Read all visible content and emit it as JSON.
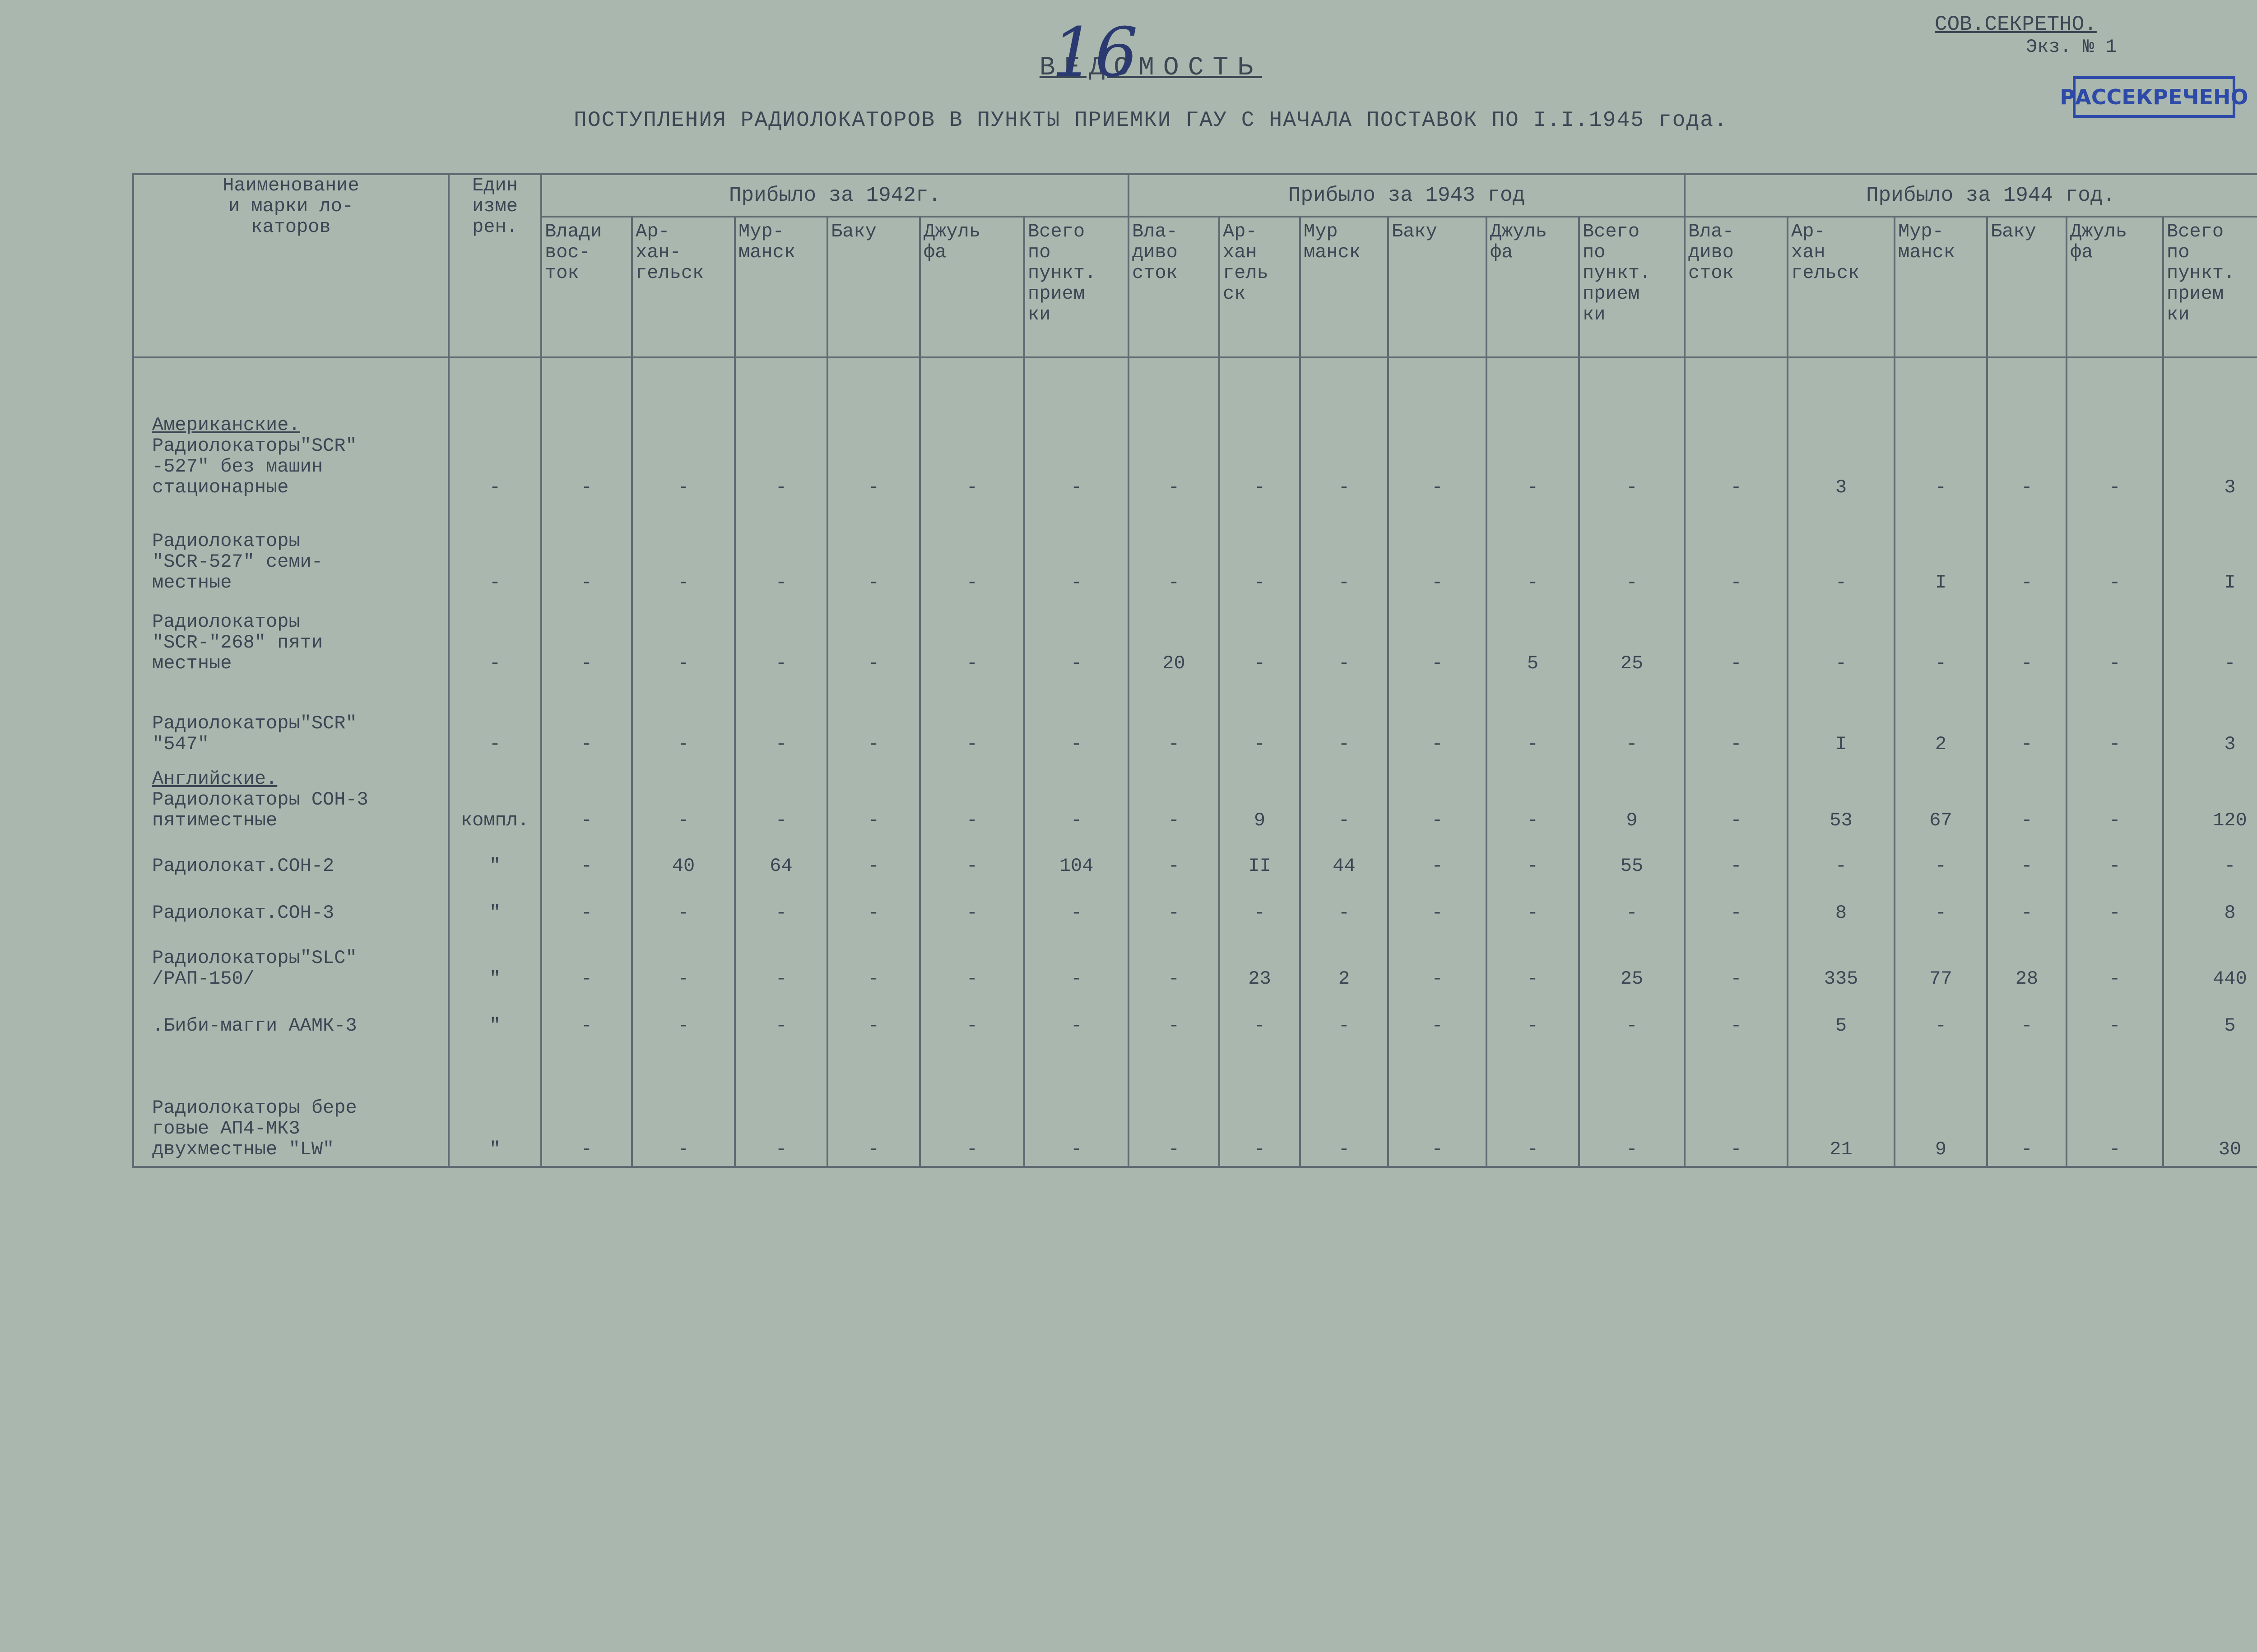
{
  "header": {
    "page_number": "16",
    "secrecy": "СОВ.СЕКРЕТНО.",
    "copy": "Экз. № 1",
    "stamp": "РАССЕКРЕЧЕНО",
    "title": "ВЕДОМОСТЬ",
    "subtitle": "ПОСТУПЛЕНИЯ РАДИОЛОКАТОРОВ В ПУНКТЫ ПРИЕМКИ ГАУ С НАЧАЛА ПОСТАВОК ПО I.I.1945 года."
  },
  "table": {
    "columns": {
      "name": "Наименование\nи марки ло-\nкаторов",
      "unit": "Един\nизме\nрен."
    },
    "groups": [
      {
        "title": "Прибыло за 1942г.",
        "columns": [
          "Влади\nвос-\nток",
          "Ар-\nхан-\nгельск",
          "Мур-\nманск",
          "Баку",
          "Джуль\nфа",
          "Всего\nпо\nпункт.\nприем\nки"
        ]
      },
      {
        "title": "Прибыло за 1943 год",
        "columns": [
          "Вла-\nдиво\nсток",
          "Ар-\nхан\nгель\nск",
          "Мур\nманск",
          "Баку",
          "Джуль\nфа",
          "Всего\nпо\nпункт.\nприем\nки"
        ]
      },
      {
        "title": "Прибыло за 1944 год.",
        "columns": [
          "Вла-\nдиво\nсток",
          "Ар-\nхан\nгельск",
          "Мур-\nманск",
          "Баку",
          "Джуль\nфа",
          "Всего\nпо\nпункт.\nприем\nки"
        ]
      }
    ],
    "rows": [
      {
        "section": "Американские.",
        "name": "Радиолокаторы\"SCR\"\n-527\" без машин\nстационарные",
        "unit": "-",
        "values": [
          "-",
          "-",
          "-",
          "-",
          "-",
          "-",
          "-",
          "-",
          "-",
          "-",
          "-",
          "-",
          "-",
          "3",
          "-",
          "-",
          "-",
          "3"
        ]
      },
      {
        "name": "Радиолокаторы\n\"SCR-527\" семи-\nместные",
        "unit": "-",
        "values": [
          "-",
          "-",
          "-",
          "-",
          "-",
          "-",
          "-",
          "-",
          "-",
          "-",
          "-",
          "-",
          "-",
          "-",
          "I",
          "-",
          "-",
          "I"
        ]
      },
      {
        "name": "Радиолокаторы\n\"SCR-\"268\" пяти\nместные",
        "unit": "-",
        "values": [
          "-",
          "-",
          "-",
          "-",
          "-",
          "-",
          "20",
          "-",
          "-",
          "-",
          "5",
          "25",
          "-",
          "-",
          "-",
          "-",
          "-",
          "-"
        ]
      },
      {
        "name": "Радиолокаторы\"SCR\"\n\"547\"",
        "unit": "-",
        "values": [
          "-",
          "-",
          "-",
          "-",
          "-",
          "-",
          "-",
          "-",
          "-",
          "-",
          "-",
          "-",
          "-",
          "I",
          "2",
          "-",
          "-",
          "3"
        ]
      },
      {
        "section": "Английские.",
        "name": "Радиолокаторы СОН-3\nпятиместные",
        "unit": "компл.",
        "values": [
          "-",
          "-",
          "-",
          "-",
          "-",
          "-",
          "-",
          "9",
          "-",
          "-",
          "-",
          "9",
          "-",
          "53",
          "67",
          "-",
          "-",
          "120"
        ]
      },
      {
        "name": "Радиолокат.СОН-2",
        "unit": "\"",
        "values": [
          "-",
          "40",
          "64",
          "-",
          "-",
          "104",
          "-",
          "II",
          "44",
          "-",
          "-",
          "55",
          "-",
          "-",
          "-",
          "-",
          "-",
          "-"
        ]
      },
      {
        "name": "Радиолокат.СОН-3",
        "unit": "\"",
        "values": [
          "-",
          "-",
          "-",
          "-",
          "-",
          "-",
          "-",
          "-",
          "-",
          "-",
          "-",
          "-",
          "-",
          "8",
          "-",
          "-",
          "-",
          "8"
        ]
      },
      {
        "name": "Радиолокаторы\"SLC\"\n/РАП-150/",
        "unit": "\"",
        "values": [
          "-",
          "-",
          "-",
          "-",
          "-",
          "-",
          "-",
          "23",
          "2",
          "-",
          "-",
          "25",
          "-",
          "335",
          "77",
          "28",
          "-",
          "440"
        ]
      },
      {
        "name": ".Биби-магги ААМК-3",
        "unit": "\"",
        "values": [
          "-",
          "-",
          "-",
          "-",
          "-",
          "-",
          "-",
          "-",
          "-",
          "-",
          "-",
          "-",
          "-",
          "5",
          "-",
          "-",
          "-",
          "5"
        ]
      },
      {
        "name": "Радиолокаторы бере\nговые АП4-МК3\nдвухместные \"LW\"",
        "unit": "\"",
        "values": [
          "-",
          "-",
          "-",
          "-",
          "-",
          "-",
          "-",
          "-",
          "-",
          "-",
          "-",
          "-",
          "-",
          "21",
          "9",
          "-",
          "-",
          "30"
        ]
      }
    ]
  }
}
